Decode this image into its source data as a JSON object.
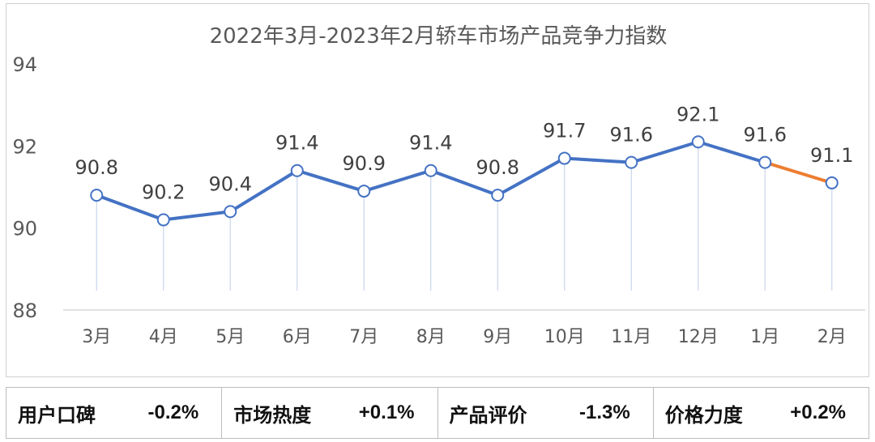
{
  "chart_data": {
    "type": "line",
    "title": "2022年3月-2023年2月轿车市场产品竞争力指数",
    "xlabel": "",
    "ylabel": "",
    "categories": [
      "3月",
      "4月",
      "5月",
      "6月",
      "7月",
      "8月",
      "9月",
      "10月",
      "11月",
      "12月",
      "1月",
      "2月"
    ],
    "values": [
      90.8,
      90.2,
      90.4,
      91.4,
      90.9,
      91.4,
      90.8,
      91.7,
      91.6,
      92.1,
      91.6,
      91.1
    ],
    "data_labels": [
      "90.8",
      "90.2",
      "90.4",
      "91.4",
      "90.9",
      "91.4",
      "90.8",
      "91.7",
      "91.6",
      "92.1",
      "91.6",
      "91.1"
    ],
    "ylim": [
      88,
      94
    ],
    "yticks": [
      "88",
      "90",
      "92",
      "94"
    ],
    "grid": false,
    "line_color": "#4472C4",
    "highlight_segment_color": "#ED7D31",
    "drop_line_color": "#c9d6ea"
  },
  "summary": [
    {
      "label": "用户口碑",
      "value": "-0.2%"
    },
    {
      "label": "市场热度",
      "value": "+0.1%"
    },
    {
      "label": "产品评价",
      "value": "-1.3%"
    },
    {
      "label": "价格力度",
      "value": "+0.2%"
    }
  ]
}
